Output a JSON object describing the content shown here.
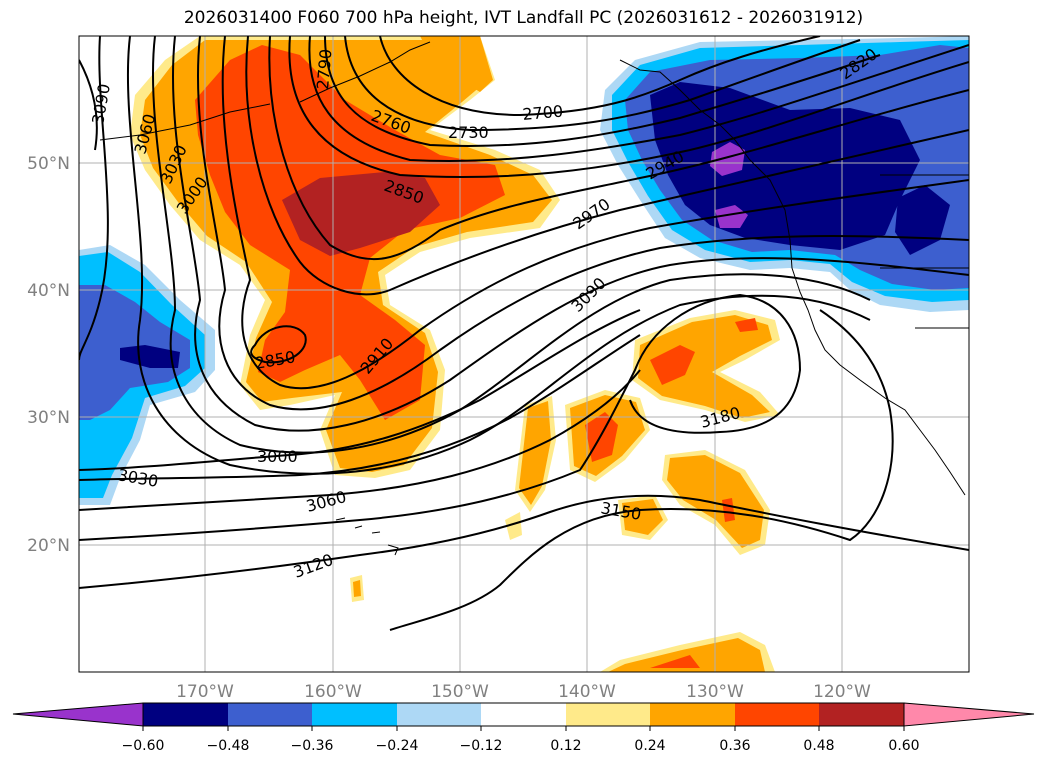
{
  "title": "2026031400 F060 700 hPa height, IVT Landfall PC (2026031612 - 2026031912)",
  "map": {
    "lon_labels": [
      "170°W",
      "160°W",
      "150°W",
      "140°W",
      "130°W",
      "120°W"
    ],
    "lat_labels": [
      "50°N",
      "40°N",
      "30°N",
      "20°N"
    ],
    "contour_labels": [
      "3090",
      "3060",
      "3030",
      "3000",
      "2760",
      "2730",
      "2700",
      "2820",
      "2850",
      "2940",
      "2970",
      "3090",
      "2850",
      "2910",
      "3180",
      "3000",
      "3030",
      "3060",
      "3150",
      "3120",
      "2790"
    ]
  },
  "colorbar": {
    "ticks": [
      "−0.60",
      "−0.48",
      "−0.36",
      "−0.24",
      "−0.12",
      "0.12",
      "0.24",
      "0.36",
      "0.48",
      "0.60"
    ],
    "colors": [
      "#9933cc",
      "#000080",
      "#3d5fcf",
      "#00bfff",
      "#add8f5",
      "#ffffff",
      "#ffea8a",
      "#ffa500",
      "#ff4500",
      "#b22222",
      "#ff88aa"
    ]
  },
  "colors": {
    "purple": "#9933cc",
    "navy": "#000080",
    "royal": "#3d5fcf",
    "cyan": "#00bfff",
    "lightblue": "#add8f5",
    "paleyellow": "#ffea8a",
    "orange": "#ffa500",
    "redorange": "#ff4500",
    "firebrick": "#b22222",
    "pink": "#ff88aa"
  }
}
